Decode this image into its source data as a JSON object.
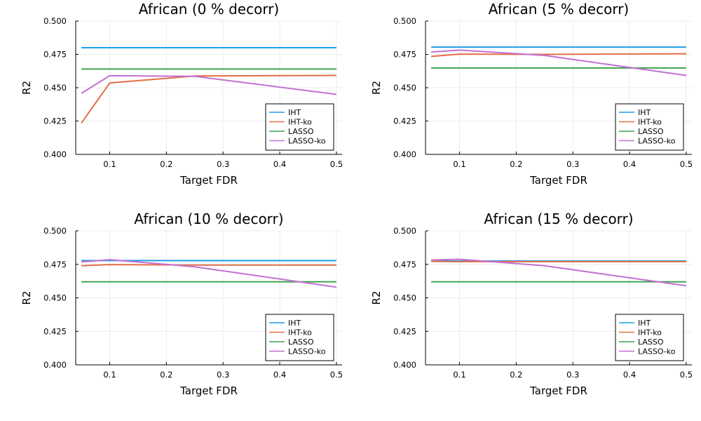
{
  "colors": {
    "IHT": "#1f9ee8",
    "IHT-ko": "#e26f46",
    "LASSO": "#3da44d",
    "LASSO-ko": "#c271d2",
    "grid": "#ececec",
    "axis": "#000000"
  },
  "chart_data": [
    {
      "type": "line",
      "title": "African (0 % decorr)",
      "xlabel": "Target FDR",
      "ylabel": "R2",
      "xlim": [
        0.04,
        0.51
      ],
      "ylim": [
        0.4,
        0.5
      ],
      "xticks": [
        0.1,
        0.2,
        0.3,
        0.4,
        0.5
      ],
      "xtick_labels": [
        "0.1",
        "0.2",
        "0.3",
        "0.4",
        "0.5"
      ],
      "yticks": [
        0.4,
        0.425,
        0.45,
        0.475,
        0.5
      ],
      "ytick_labels": [
        "0.400",
        "0.425",
        "0.450",
        "0.475",
        "0.500"
      ],
      "grid": true,
      "legend_position": "bottom-right",
      "x": [
        0.05,
        0.1,
        0.25,
        0.5
      ],
      "series": [
        {
          "name": "IHT",
          "values": [
            0.48,
            0.48,
            0.48,
            0.48
          ]
        },
        {
          "name": "IHT-ko",
          "values": [
            0.4235,
            0.4535,
            0.4588,
            0.4592
          ]
        },
        {
          "name": "LASSO",
          "values": [
            0.464,
            0.464,
            0.464,
            0.464
          ]
        },
        {
          "name": "LASSO-ko",
          "values": [
            0.4458,
            0.459,
            0.4585,
            0.445
          ]
        }
      ]
    },
    {
      "type": "line",
      "title": "African (5 % decorr)",
      "xlabel": "Target FDR",
      "ylabel": "R2",
      "xlim": [
        0.04,
        0.51
      ],
      "ylim": [
        0.4,
        0.5
      ],
      "xticks": [
        0.1,
        0.2,
        0.3,
        0.4,
        0.5
      ],
      "xtick_labels": [
        "0.1",
        "0.2",
        "0.3",
        "0.4",
        "0.5"
      ],
      "yticks": [
        0.4,
        0.425,
        0.45,
        0.475,
        0.5
      ],
      "ytick_labels": [
        "0.400",
        "0.425",
        "0.450",
        "0.475",
        "0.500"
      ],
      "grid": true,
      "legend_position": "bottom-right",
      "x": [
        0.05,
        0.1,
        0.25,
        0.5
      ],
      "series": [
        {
          "name": "IHT",
          "values": [
            0.4805,
            0.4805,
            0.4805,
            0.4805
          ]
        },
        {
          "name": "IHT-ko",
          "values": [
            0.4735,
            0.4752,
            0.475,
            0.4755
          ]
        },
        {
          "name": "LASSO",
          "values": [
            0.4648,
            0.4648,
            0.4648,
            0.4648
          ]
        },
        {
          "name": "LASSO-ko",
          "values": [
            0.4768,
            0.4782,
            0.4742,
            0.4592
          ]
        }
      ]
    },
    {
      "type": "line",
      "title": "African (10 % decorr)",
      "xlabel": "Target FDR",
      "ylabel": "R2",
      "xlim": [
        0.04,
        0.51
      ],
      "ylim": [
        0.4,
        0.5
      ],
      "xticks": [
        0.1,
        0.2,
        0.3,
        0.4,
        0.5
      ],
      "xtick_labels": [
        "0.1",
        "0.2",
        "0.3",
        "0.4",
        "0.5"
      ],
      "yticks": [
        0.4,
        0.425,
        0.45,
        0.475,
        0.5
      ],
      "ytick_labels": [
        "0.400",
        "0.425",
        "0.450",
        "0.475",
        "0.500"
      ],
      "grid": true,
      "legend_position": "bottom-right",
      "x": [
        0.05,
        0.1,
        0.25,
        0.5
      ],
      "series": [
        {
          "name": "IHT",
          "values": [
            0.4778,
            0.4778,
            0.4778,
            0.4778
          ]
        },
        {
          "name": "IHT-ko",
          "values": [
            0.474,
            0.4748,
            0.4745,
            0.4745
          ]
        },
        {
          "name": "LASSO",
          "values": [
            0.462,
            0.462,
            0.462,
            0.462
          ]
        },
        {
          "name": "LASSO-ko",
          "values": [
            0.4768,
            0.4785,
            0.4732,
            0.458
          ]
        }
      ]
    },
    {
      "type": "line",
      "title": "African (15 % decorr)",
      "xlabel": "Target FDR",
      "ylabel": "R2",
      "xlim": [
        0.04,
        0.51
      ],
      "ylim": [
        0.4,
        0.5
      ],
      "xticks": [
        0.1,
        0.2,
        0.3,
        0.4,
        0.5
      ],
      "xtick_labels": [
        "0.1",
        "0.2",
        "0.3",
        "0.4",
        "0.5"
      ],
      "yticks": [
        0.4,
        0.425,
        0.45,
        0.475,
        0.5
      ],
      "ytick_labels": [
        "0.400",
        "0.425",
        "0.450",
        "0.475",
        "0.500"
      ],
      "grid": true,
      "legend_position": "bottom-right",
      "x": [
        0.05,
        0.1,
        0.25,
        0.5
      ],
      "series": [
        {
          "name": "IHT",
          "values": [
            0.4775,
            0.4775,
            0.4775,
            0.4775
          ]
        },
        {
          "name": "IHT-ko",
          "values": [
            0.4772,
            0.477,
            0.477,
            0.477
          ]
        },
        {
          "name": "LASSO",
          "values": [
            0.462,
            0.462,
            0.462,
            0.462
          ]
        },
        {
          "name": "LASSO-ko",
          "values": [
            0.4782,
            0.4788,
            0.474,
            0.459
          ]
        }
      ]
    }
  ]
}
